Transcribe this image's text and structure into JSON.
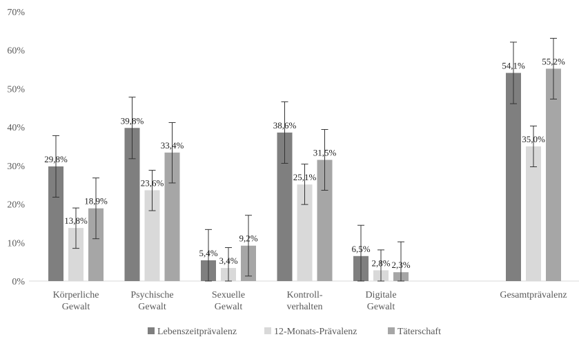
{
  "chart_data": {
    "type": "bar",
    "categories": [
      [
        "Körperliche",
        "Gewalt"
      ],
      [
        "Psychische",
        "Gewalt"
      ],
      [
        "Sexuelle",
        "Gewalt"
      ],
      [
        "Kontroll-",
        "verhalten"
      ],
      [
        "Digitale",
        "Gewalt"
      ],
      [
        "Gesamtprävalenz"
      ]
    ],
    "series": [
      {
        "name": "Lebenszeitprävalenz",
        "color": "#7f7f7f",
        "values": [
          29.8,
          39.8,
          5.4,
          38.6,
          6.5,
          54.1
        ],
        "labels": [
          "29,8%",
          "39,8%",
          "5,4%",
          "38,6%",
          "6,5%",
          "54,1%"
        ],
        "error_low": [
          21.8,
          31.8,
          0.0,
          30.6,
          0.0,
          46.1
        ],
        "error_high": [
          37.8,
          47.8,
          13.4,
          46.6,
          14.5,
          62.1
        ]
      },
      {
        "name": "12-Monats-Prävalenz",
        "color": "#d9d9d9",
        "values": [
          13.8,
          23.6,
          3.4,
          25.1,
          2.8,
          35.0
        ],
        "labels": [
          "13,8%",
          "23,6%",
          "3,4%",
          "25,1%",
          "2,8%",
          "35,0%"
        ],
        "error_low": [
          8.5,
          18.3,
          0.0,
          19.9,
          0.0,
          29.7
        ],
        "error_high": [
          19.0,
          28.8,
          8.7,
          30.4,
          8.1,
          40.3
        ]
      },
      {
        "name": "Täterschaft",
        "color": "#a6a6a6",
        "values": [
          18.9,
          33.4,
          9.2,
          31.5,
          2.3,
          55.2
        ],
        "labels": [
          "18,9%",
          "33,4%",
          "9,2%",
          "31,5%",
          "2,3%",
          "55,2%"
        ],
        "error_low": [
          11.0,
          25.5,
          1.3,
          23.6,
          0.0,
          47.3
        ],
        "error_high": [
          26.8,
          41.2,
          17.1,
          39.4,
          10.2,
          63.1
        ]
      }
    ],
    "y_ticks": [
      "0%",
      "10%",
      "20%",
      "30%",
      "40%",
      "50%",
      "60%",
      "70%"
    ],
    "ylim": [
      0,
      70
    ],
    "grid": false,
    "legend_position": "bottom"
  }
}
